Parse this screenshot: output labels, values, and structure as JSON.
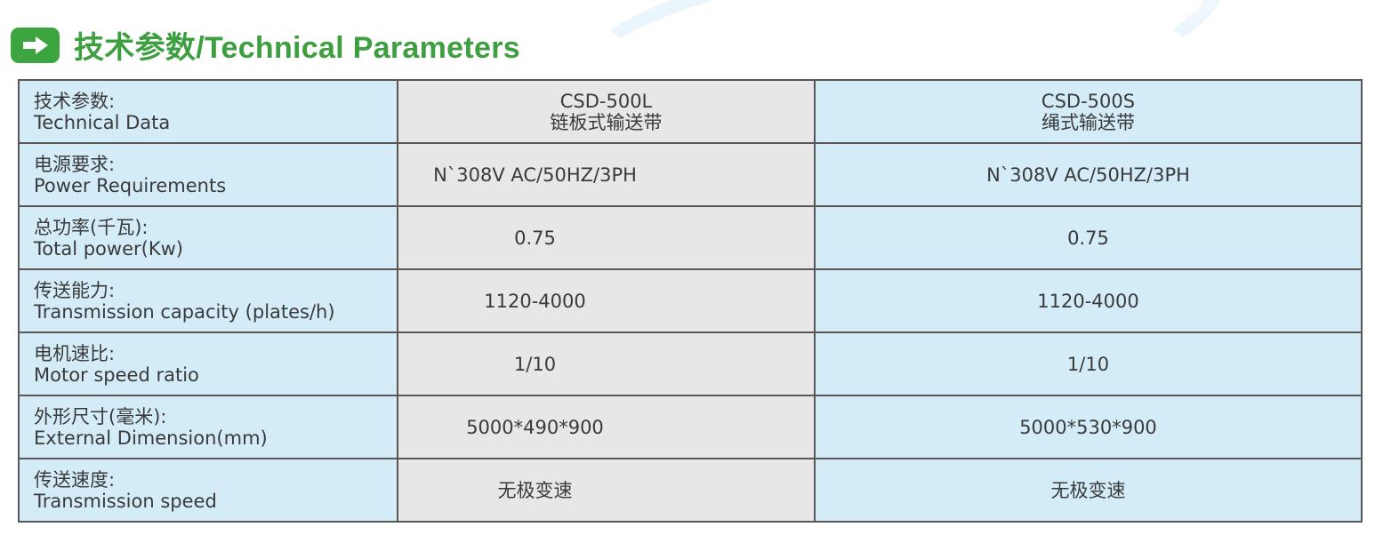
{
  "heading": {
    "icon": "arrow-right-icon",
    "title": "技术参数/Technical Parameters"
  },
  "colors": {
    "accent_green": "#3da53f",
    "label_bg": "#d3ecf8",
    "model_l_bg": "#e7e7e7",
    "model_s_bg": "#d3ecf8",
    "border": "#5a5656"
  },
  "table": {
    "header": {
      "label_cn": "技术参数:",
      "label_en": "Technical Data",
      "model_l": "CSD-500L",
      "model_l_type": "链板式输送带",
      "model_s": "CSD-500S",
      "model_s_type": "绳式输送带"
    },
    "rows": [
      {
        "label_cn": "电源要求:",
        "label_en": "Power Requirements",
        "l": "N`308V AC/50HZ/3PH",
        "s": "N`308V AC/50HZ/3PH"
      },
      {
        "label_cn": "总功率(千瓦):",
        "label_en": "Total power(Kw)",
        "l": "0.75",
        "s": "0.75"
      },
      {
        "label_cn": "传送能力:",
        "label_en": "Transmission capacity (plates/h)",
        "l": "1120-4000",
        "s": "1120-4000"
      },
      {
        "label_cn": "电机速比:",
        "label_en": "Motor speed ratio",
        "l": "1/10",
        "s": "1/10"
      },
      {
        "label_cn": "外形尺寸(毫米):",
        "label_en": "External Dimension(mm)",
        "l": "5000*490*900",
        "s": "5000*530*900"
      },
      {
        "label_cn": "传送速度:",
        "label_en": "Transmission speed",
        "l": "无极变速",
        "s": "无极变速"
      }
    ]
  }
}
